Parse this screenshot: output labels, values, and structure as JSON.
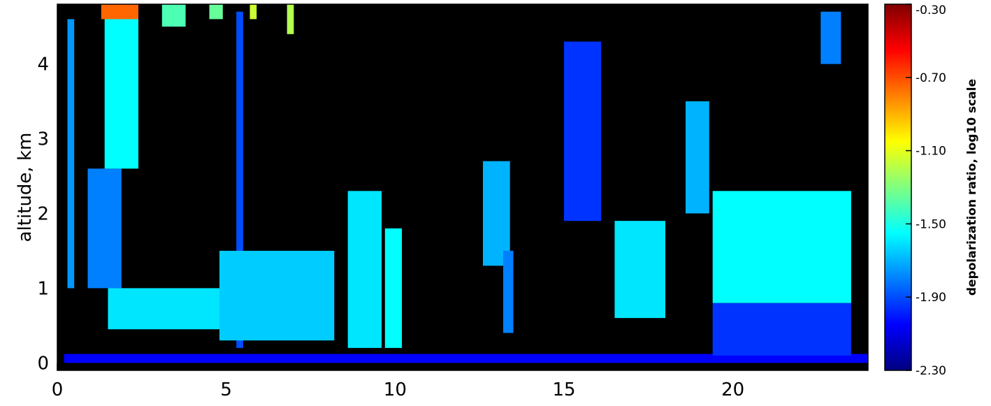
{
  "chart_data": {
    "type": "heatmap",
    "title": "",
    "xlabel": "",
    "ylabel": "altitude, km",
    "xlim": [
      0,
      24
    ],
    "ylim": [
      -0.1,
      4.8
    ],
    "x_ticks": [
      0,
      5,
      10,
      15,
      20
    ],
    "y_ticks": [
      0,
      1,
      2,
      3,
      4
    ],
    "background_color": "#000000",
    "colorbar": {
      "label": "depolarization ratio, log10 scale",
      "range": [
        -2.3,
        -0.3
      ],
      "ticks": [
        "-2.30",
        "-1.90",
        "-1.50",
        "-1.10",
        "-0.70",
        "-0.30"
      ],
      "colormap": [
        "#000080",
        "#0000ff",
        "#0080ff",
        "#00ffff",
        "#80ff80",
        "#ffff00",
        "#ff8000",
        "#ff0000",
        "#800000"
      ]
    },
    "features": [
      {
        "x": [
          0.2,
          24.0
        ],
        "y": [
          0.0,
          0.12
        ],
        "value": -2.05
      },
      {
        "x": [
          0.3,
          0.5
        ],
        "y": [
          1.0,
          4.6
        ],
        "value": -1.75
      },
      {
        "x": [
          0.9,
          1.9
        ],
        "y": [
          1.0,
          2.6
        ],
        "value": -1.8
      },
      {
        "x": [
          1.4,
          2.4
        ],
        "y": [
          2.6,
          4.8
        ],
        "value": -1.55
      },
      {
        "x": [
          1.3,
          2.4
        ],
        "y": [
          4.6,
          4.8
        ],
        "value": -0.75
      },
      {
        "x": [
          3.1,
          3.8
        ],
        "y": [
          4.5,
          4.8
        ],
        "value": -1.4
      },
      {
        "x": [
          4.5,
          4.9
        ],
        "y": [
          4.6,
          4.8
        ],
        "value": -1.35
      },
      {
        "x": [
          5.3,
          5.5
        ],
        "y": [
          0.2,
          4.7
        ],
        "value": -1.9
      },
      {
        "x": [
          5.7,
          5.9
        ],
        "y": [
          4.6,
          4.8
        ],
        "value": -1.15
      },
      {
        "x": [
          6.8,
          7.0
        ],
        "y": [
          4.4,
          4.8
        ],
        "value": -1.2
      },
      {
        "x": [
          1.5,
          4.8
        ],
        "y": [
          0.45,
          1.0
        ],
        "value": -1.6
      },
      {
        "x": [
          4.8,
          8.2
        ],
        "y": [
          0.3,
          1.5
        ],
        "value": -1.65
      },
      {
        "x": [
          8.6,
          9.6
        ],
        "y": [
          0.2,
          2.3
        ],
        "value": -1.6
      },
      {
        "x": [
          9.7,
          10.2
        ],
        "y": [
          0.2,
          1.8
        ],
        "value": -1.55
      },
      {
        "x": [
          12.6,
          13.4
        ],
        "y": [
          1.3,
          2.7
        ],
        "value": -1.7
      },
      {
        "x": [
          13.2,
          13.5
        ],
        "y": [
          0.4,
          1.5
        ],
        "value": -1.8
      },
      {
        "x": [
          15.0,
          16.1
        ],
        "y": [
          1.9,
          4.3
        ],
        "value": -1.95
      },
      {
        "x": [
          16.5,
          18.0
        ],
        "y": [
          0.6,
          1.9
        ],
        "value": -1.6
      },
      {
        "x": [
          18.6,
          19.3
        ],
        "y": [
          2.0,
          3.5
        ],
        "value": -1.7
      },
      {
        "x": [
          19.4,
          23.5
        ],
        "y": [
          0.8,
          2.3
        ],
        "value": -1.55
      },
      {
        "x": [
          19.4,
          23.5
        ],
        "y": [
          0.1,
          0.8
        ],
        "value": -1.95
      },
      {
        "x": [
          22.6,
          23.2
        ],
        "y": [
          4.0,
          4.7
        ],
        "value": -1.8
      }
    ]
  }
}
